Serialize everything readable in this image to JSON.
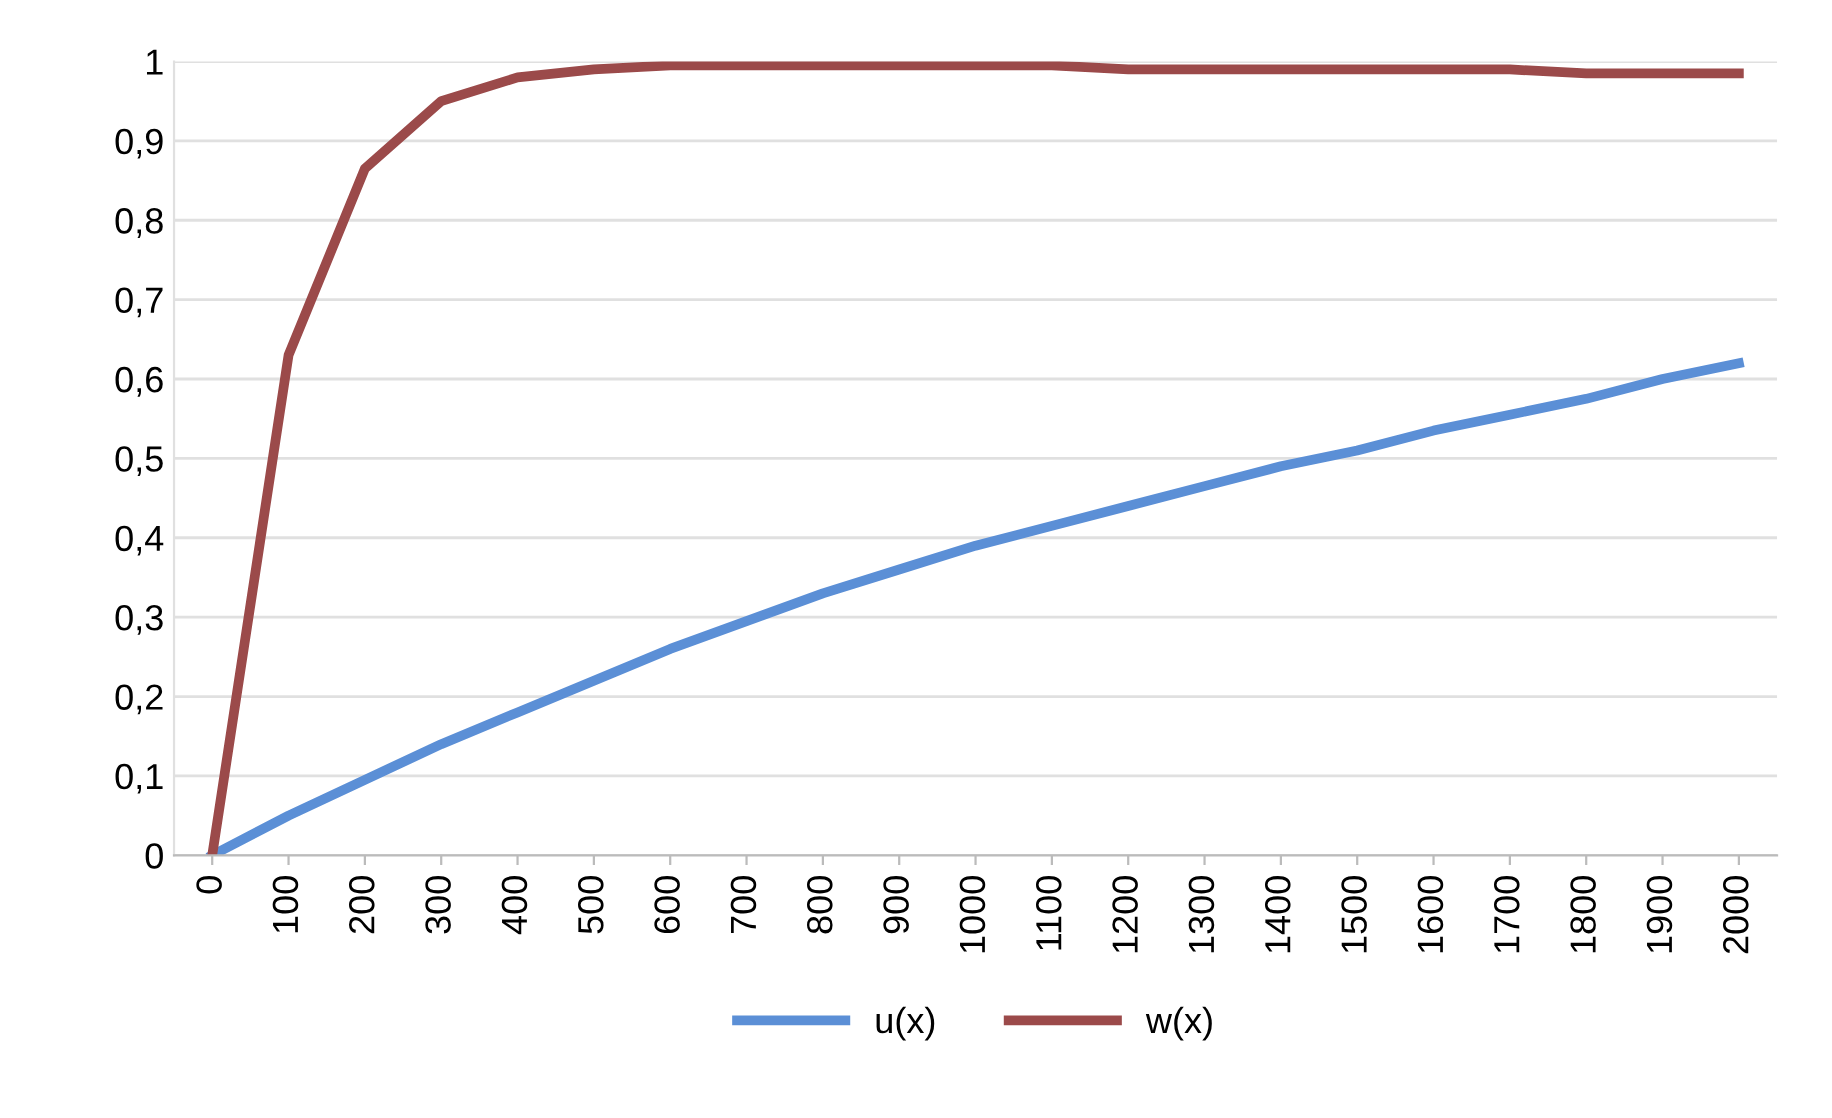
{
  "chart_data": {
    "type": "line",
    "categories": [
      "0",
      "100",
      "200",
      "300",
      "400",
      "500",
      "600",
      "700",
      "800",
      "900",
      "1000",
      "1100",
      "1200",
      "1300",
      "1400",
      "1500",
      "1600",
      "1700",
      "1800",
      "1900",
      "2000"
    ],
    "series": [
      {
        "name": "u(x)",
        "color": "#5b8fd6",
        "values": [
          0,
          0.05,
          0.095,
          0.14,
          0.18,
          0.22,
          0.26,
          0.295,
          0.33,
          0.36,
          0.39,
          0.415,
          0.44,
          0.465,
          0.49,
          0.51,
          0.535,
          0.555,
          0.575,
          0.6,
          0.62
        ]
      },
      {
        "name": "w(x)",
        "color": "#9b4a4a",
        "values": [
          0,
          0.63,
          0.865,
          0.95,
          0.98,
          0.99,
          0.995,
          0.995,
          0.995,
          0.995,
          0.995,
          0.995,
          0.99,
          0.99,
          0.99,
          0.99,
          0.99,
          0.99,
          0.985,
          0.985,
          0.985
        ]
      }
    ],
    "ylim": [
      0,
      1
    ],
    "yticks": [
      0,
      {
        "value": 0.1,
        "label": "0,1"
      },
      {
        "value": 0.2,
        "label": "0,2"
      },
      {
        "value": 0.3,
        "label": "0,3"
      },
      {
        "value": 0.4,
        "label": "0,4"
      },
      {
        "value": 0.5,
        "label": "0,5"
      },
      {
        "value": 0.6,
        "label": "0,6"
      },
      {
        "value": 0.7,
        "label": "0,7"
      },
      {
        "value": 0.8,
        "label": "0,8"
      },
      {
        "value": 0.9,
        "label": "0,9"
      },
      1
    ],
    "grid": "y",
    "legend": "bottom",
    "marker": "none",
    "line_style": "solid"
  }
}
